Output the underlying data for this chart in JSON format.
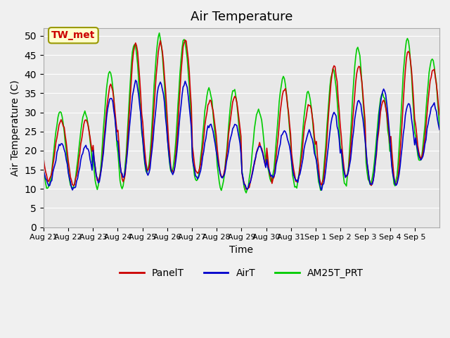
{
  "title": "Air Temperature",
  "ylabel": "Air Temperature (C)",
  "xlabel": "Time",
  "annotation": "TW_met",
  "legend": [
    "PanelT",
    "AirT",
    "AM25T_PRT"
  ],
  "colors": {
    "PanelT": "#cc0000",
    "AirT": "#0000cc",
    "AM25T_PRT": "#00cc00"
  },
  "ylim": [
    0,
    52
  ],
  "yticks": [
    0,
    5,
    10,
    15,
    20,
    25,
    30,
    35,
    40,
    45,
    50
  ],
  "xtick_labels": [
    "Aug 21",
    "Aug 22",
    "Aug 23",
    "Aug 24",
    "Aug 25",
    "Aug 26",
    "Aug 27",
    "Aug 28",
    "Aug 29",
    "Aug 30",
    "Aug 31",
    "Sep 1",
    "Sep 2",
    "Sep 3",
    "Sep 4",
    "Sep 5"
  ],
  "plot_bg_color": "#e8e8e8",
  "fig_bg_color": "#f0f0f0",
  "title_fontsize": 13,
  "axis_fontsize": 10,
  "legend_fontsize": 10,
  "day_peaks_panel": [
    28,
    28,
    37,
    48,
    48,
    49,
    33,
    34,
    21,
    36,
    32,
    42,
    42,
    33,
    46,
    41
  ],
  "day_peaks_air": [
    22,
    21,
    34,
    38,
    38,
    38,
    27,
    27,
    21,
    25,
    25,
    30,
    33,
    36,
    32,
    32
  ],
  "day_peaks_am25": [
    30,
    30,
    41,
    48,
    50,
    49,
    36,
    36,
    31,
    39,
    35,
    41,
    47,
    35,
    49,
    44
  ],
  "day_mins": [
    12,
    11,
    12,
    12,
    15,
    14,
    14,
    13,
    10,
    12,
    12,
    11,
    13,
    11,
    11,
    18
  ],
  "day_mins_air": [
    11,
    10,
    12,
    13,
    14,
    14,
    13,
    13,
    10,
    13,
    12,
    10,
    13,
    11,
    11,
    18
  ],
  "day_mins_am25": [
    10,
    10,
    10,
    10,
    14,
    14,
    12,
    10,
    9,
    12,
    10,
    10,
    11,
    11,
    11,
    17
  ]
}
